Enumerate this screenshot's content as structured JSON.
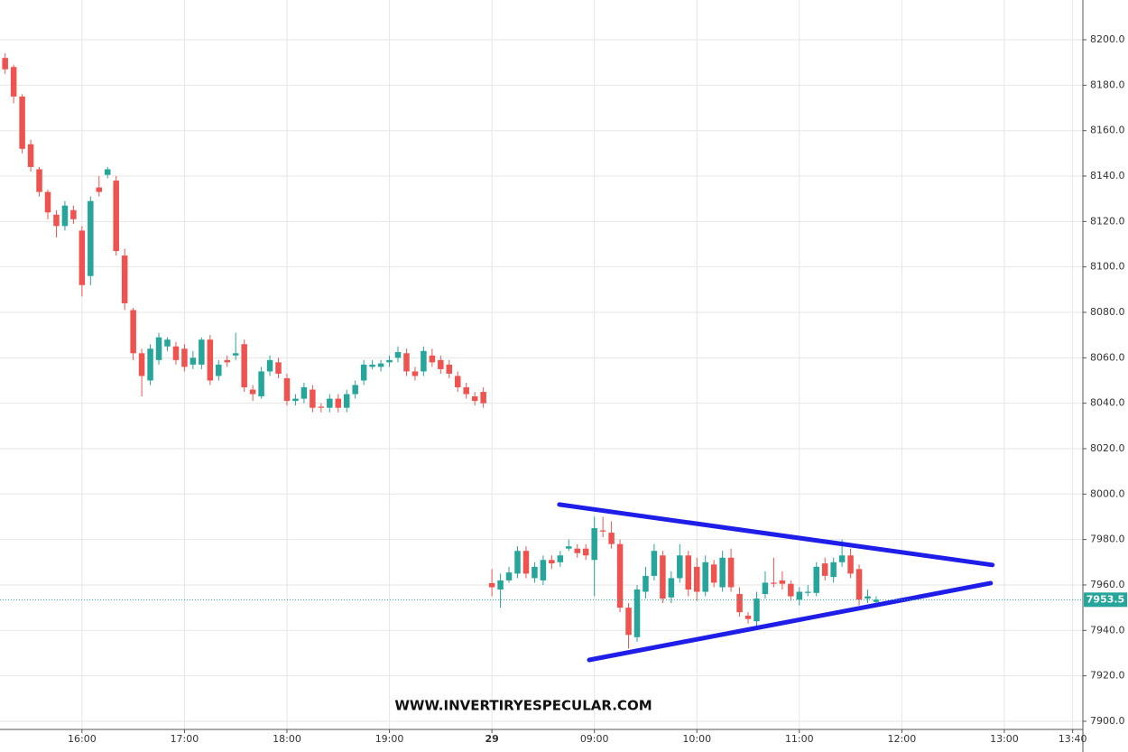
{
  "chart_data": {
    "type": "candlestick",
    "watermark": "WWW.INVERTIRYESPECULAR.COM",
    "colors": {
      "up": "#26a69a",
      "down": "#ef5350",
      "trendline": "#1e1ee8"
    },
    "grid": true,
    "xlim": [
      -0.6,
      126.2
    ],
    "ylim": [
      7896.4,
      8217.5
    ],
    "xticks": [
      {
        "value": 9,
        "label": "16:00"
      },
      {
        "value": 21,
        "label": "17:00"
      },
      {
        "value": 33,
        "label": "18:00"
      },
      {
        "value": 45,
        "label": "19:00"
      },
      {
        "value": 57,
        "label": "29"
      },
      {
        "value": 69,
        "label": "09:00"
      },
      {
        "value": 81,
        "label": "10:00"
      },
      {
        "value": 93,
        "label": "11:00"
      },
      {
        "value": 105,
        "label": "12:00"
      },
      {
        "value": 117,
        "label": "13:00"
      },
      {
        "value": 125,
        "label": "13:40"
      }
    ],
    "yticks": [
      {
        "value": 7900,
        "label": "7900.0"
      },
      {
        "value": 7920,
        "label": "7920.0"
      },
      {
        "value": 7940,
        "label": "7940.0"
      },
      {
        "value": 7960,
        "label": "7960.0"
      },
      {
        "value": 7980,
        "label": "7980.0"
      },
      {
        "value": 8000,
        "label": "8000.0"
      },
      {
        "value": 8020,
        "label": "8020.0"
      },
      {
        "value": 8040,
        "label": "8040.0"
      },
      {
        "value": 8060,
        "label": "8060.0"
      },
      {
        "value": 8080,
        "label": "8080.0"
      },
      {
        "value": 8100,
        "label": "8100.0"
      },
      {
        "value": 8120,
        "label": "8120.0"
      },
      {
        "value": 8140,
        "label": "8140.0"
      },
      {
        "value": 8160,
        "label": "8160.0"
      },
      {
        "value": 8180,
        "label": "8180.0"
      },
      {
        "value": 8200,
        "label": "8200.0"
      }
    ],
    "last_price": {
      "value": 7953.5,
      "label": "7953.5"
    },
    "trendlines": [
      {
        "x": [
          64.9,
          115.6
        ],
        "y": [
          7995.4,
          7968.8
        ]
      },
      {
        "x": [
          68.4,
          115.4
        ],
        "y": [
          7927.0,
          7960.8
        ]
      }
    ],
    "candles": {
      "x": [
        0,
        1,
        2,
        3,
        4,
        5,
        6,
        7,
        8,
        9,
        10,
        11,
        12,
        13,
        14,
        15,
        16,
        17,
        18,
        19,
        20,
        21,
        22,
        23,
        24,
        25,
        26,
        27,
        28,
        29,
        30,
        31,
        32,
        33,
        34,
        35,
        36,
        37,
        38,
        39,
        40,
        41,
        42,
        43,
        44,
        45,
        46,
        47,
        48,
        49,
        50,
        51,
        52,
        53,
        54,
        55,
        56,
        57,
        58,
        59,
        60,
        61,
        62,
        63,
        64,
        65,
        66,
        67,
        68,
        69,
        70,
        71,
        72,
        73,
        74,
        75,
        76,
        77,
        78,
        79,
        80,
        81,
        82,
        83,
        84,
        85,
        86,
        87,
        88,
        89,
        90,
        91,
        92,
        93,
        94,
        95,
        96,
        97,
        98,
        99,
        100,
        101,
        102
      ],
      "open": [
        8192,
        8188,
        8175,
        8154,
        8143,
        8133,
        8123,
        8118,
        8125,
        8116,
        8096,
        8135,
        8140.5,
        8138,
        8105,
        8081,
        8062,
        8050,
        8059,
        8065,
        8065,
        8064,
        8057,
        8057,
        8068,
        8052,
        8059,
        8061,
        8066,
        8046,
        8043,
        8054,
        8058,
        8051,
        8041,
        8042,
        8046,
        8038.5,
        8038,
        8042,
        8038,
        8044,
        8050,
        8056,
        8056,
        8058,
        8060,
        8062,
        8054,
        8054,
        8061,
        8059,
        8057,
        8052,
        8047,
        8043,
        8045,
        7960.8,
        7958,
        7962,
        7965,
        7975,
        7963,
        7962,
        7971,
        7970,
        7976,
        7976,
        7976,
        7971,
        7984,
        7983,
        7978,
        7950,
        7937,
        7957,
        7964,
        7973,
        7954.5,
        7963,
        7973,
        7968,
        7957,
        7969,
        7959,
        7972,
        7956,
        7946.5,
        7944,
        7956,
        7961,
        7962,
        7960.5,
        7953.5,
        7956.5,
        7956.5,
        7969.5,
        7963.5,
        7970,
        7973,
        7967,
        7954,
        7952.5
      ],
      "high": [
        8194,
        8189,
        8176,
        8156,
        8144,
        8134,
        8125,
        8129,
        8127,
        8118,
        8131,
        8140,
        8144,
        8140,
        8108,
        8082,
        8064,
        8066,
        8071,
        8069,
        8067,
        8066,
        8063,
        8069,
        8070,
        8059,
        8061,
        8071,
        8068,
        8048,
        8056,
        8061,
        8060,
        8053,
        8044,
        8049,
        8048,
        8040,
        8044,
        8044,
        8046,
        8050,
        8059,
        8059,
        8059,
        8061,
        8065,
        8064,
        8056,
        8065,
        8064,
        8061,
        8059,
        8054,
        8049,
        8045,
        8047,
        7967,
        7965,
        7968,
        7977,
        7977,
        7970,
        7973,
        7973,
        7975,
        7980,
        7978,
        7978,
        7990,
        7990,
        7988,
        7980,
        7952,
        7960,
        7968,
        7978,
        7975,
        7966,
        7978,
        7975,
        7972,
        7973,
        7971,
        7975,
        7976,
        7959,
        7948,
        7957,
        7966,
        7972,
        7966,
        7962,
        7959,
        7960,
        7970,
        7972,
        7972,
        7980,
        7976,
        7969,
        7958,
        7955
      ],
      "low": [
        8185,
        8172,
        8150,
        8142,
        8131,
        8121,
        8113,
        8116,
        8119,
        8087,
        8092,
        8131,
        8139,
        8105,
        8081,
        8059,
        8043,
        8048,
        8057,
        8063,
        8057,
        8054,
        8055,
        8055,
        8048,
        8050,
        8056,
        8059,
        8045,
        8041,
        8042,
        8052,
        8051,
        8039,
        8039,
        8040,
        8036,
        8036,
        8036,
        8036,
        8036,
        8042,
        8048,
        8055,
        8054,
        8056,
        8058,
        8052,
        8050,
        8052,
        8056,
        8053,
        8051,
        8045,
        8042,
        8039,
        8038,
        7955,
        7950,
        7961,
        7963,
        7963,
        7961,
        7960,
        7967,
        7968,
        7975,
        7972,
        7971,
        7955,
        7981,
        7976,
        7948,
        7932,
        7935,
        7954,
        7962,
        7952,
        7952,
        7961,
        7955,
        7953,
        7955,
        7959,
        7957,
        7957,
        7946,
        7943,
        7942,
        7954,
        7959,
        7958,
        7953,
        7951,
        7955,
        7955,
        7962,
        7961,
        7968,
        7963,
        7951,
        7952,
        7951
      ],
      "close": [
        8187,
        8175,
        8152,
        8144,
        8133,
        8124,
        8118,
        8127,
        8121,
        8092,
        8129,
        8133,
        8143,
        8107,
        8084,
        8062,
        8052,
        8064,
        8069,
        8068,
        8059,
        8056,
        8060,
        8068,
        8050,
        8057,
        8058,
        8062,
        8047,
        8044,
        8054,
        8059,
        8053,
        8041,
        8042,
        8047,
        8038,
        8038,
        8042,
        8038,
        8044,
        8048,
        8057,
        8057,
        8057.5,
        8059,
        8062.5,
        8054,
        8052,
        8063,
        8058,
        8055,
        8053,
        8047,
        8044,
        8041,
        8040,
        7959,
        7962,
        7965.5,
        7975,
        7965,
        7968,
        7971,
        7969.5,
        7973,
        7977,
        7974,
        7973,
        7985,
        7983.5,
        7978,
        7950,
        7938,
        7958,
        7964,
        7975,
        7954,
        7963,
        7973,
        7958,
        7957,
        7970,
        7961,
        7972,
        7959,
        7948,
        7945,
        7954,
        7961,
        7960.5,
        7960.5,
        7955,
        7957,
        7957,
        7968,
        7964,
        7970,
        7973,
        7965,
        7953.5,
        7955,
        7953.5
      ]
    }
  }
}
